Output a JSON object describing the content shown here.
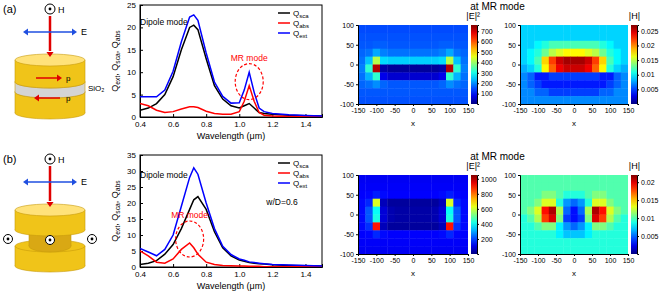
{
  "panels": [
    {
      "label": "(a)",
      "schematic": {
        "magnetic": "H",
        "electric": "E",
        "spacer": "SiO₂",
        "dipoles": [
          "p",
          "p"
        ]
      },
      "maps_title": "at MR mode"
    },
    {
      "label": "(b)",
      "schematic": {
        "magnetic": "H",
        "electric": "E"
      },
      "maps_title": "at MR mode"
    }
  ],
  "chart_data": [
    {
      "type": "line",
      "x_label": "Wavelength (μm)",
      "y_label": "Qext, Qsca, Qabs",
      "x": [
        0.4,
        0.45,
        0.5,
        0.55,
        0.6,
        0.65,
        0.7,
        0.725,
        0.75,
        0.8,
        0.85,
        0.9,
        0.95,
        1.0,
        1.03,
        1.06,
        1.09,
        1.12,
        1.15,
        1.2,
        1.3,
        1.4,
        1.5
      ],
      "series": [
        {
          "name": "Qsca",
          "color": "#000000",
          "values": [
            1.5,
            2,
            3,
            5,
            9,
            15,
            20,
            20.5,
            19.5,
            13,
            7,
            4,
            2.5,
            2,
            2.5,
            3,
            2,
            1,
            0.8,
            0.6,
            0.4,
            0.3,
            0.2
          ]
        },
        {
          "name": "Qabs",
          "color": "#ff0000",
          "values": [
            3,
            2.5,
            1.5,
            1,
            1.2,
            1.8,
            2.3,
            2.3,
            2.1,
            1.3,
            0.8,
            0.6,
            0.6,
            1.2,
            3.5,
            7,
            3.5,
            1,
            0.4,
            0.2,
            0.1,
            0.05,
            0.05
          ]
        },
        {
          "name": "Qext",
          "color": "#0000ff",
          "values": [
            4.5,
            4.5,
            4.5,
            6,
            10.2,
            16.8,
            22.3,
            22.8,
            21.6,
            14.3,
            7.8,
            4.6,
            3.1,
            3.2,
            6,
            10,
            5.5,
            2,
            1.2,
            0.8,
            0.5,
            0.35,
            0.25
          ]
        }
      ],
      "xlim": [
        0.4,
        1.5
      ],
      "xticks": [
        0.4,
        0.6,
        0.8,
        {
          "value": 1,
          "label": "1.0"
        },
        1.2,
        1.4
      ],
      "ylim": [
        0,
        25
      ],
      "yticks": [
        0,
        5,
        10,
        15,
        20,
        25
      ],
      "legend": "upper right",
      "annotations": [
        "Dipole mode",
        "MR mode"
      ]
    },
    {
      "type": "heatmap",
      "title": "|E|²",
      "x_label": "x",
      "x": [
        -140,
        -120,
        -100,
        -80,
        -60,
        -40,
        -20,
        0,
        20,
        40,
        60,
        80,
        100,
        120,
        140
      ],
      "y": [
        90,
        70,
        50,
        30,
        10,
        -10,
        -30,
        -50,
        -70,
        -90
      ],
      "values": [
        [
          150,
          150,
          150,
          150,
          150,
          150,
          150,
          150,
          150,
          150,
          150,
          150,
          150,
          150,
          150
        ],
        [
          155,
          155,
          155,
          155,
          155,
          155,
          155,
          155,
          155,
          155,
          155,
          155,
          155,
          155,
          155
        ],
        [
          160,
          160,
          165,
          165,
          160,
          160,
          160,
          160,
          160,
          160,
          160,
          165,
          165,
          160,
          160
        ],
        [
          170,
          180,
          220,
          190,
          180,
          180,
          180,
          180,
          180,
          180,
          180,
          190,
          220,
          180,
          170
        ],
        [
          180,
          240,
          420,
          260,
          250,
          250,
          250,
          250,
          250,
          250,
          250,
          260,
          420,
          240,
          180
        ],
        [
          190,
          320,
          720,
          30,
          20,
          20,
          20,
          20,
          20,
          20,
          20,
          30,
          720,
          320,
          190
        ],
        [
          180,
          230,
          320,
          80,
          60,
          60,
          60,
          60,
          60,
          60,
          60,
          80,
          320,
          230,
          180
        ],
        [
          170,
          180,
          200,
          170,
          160,
          160,
          160,
          160,
          160,
          160,
          160,
          170,
          200,
          180,
          170
        ],
        [
          160,
          160,
          160,
          160,
          160,
          160,
          160,
          160,
          160,
          160,
          160,
          160,
          160,
          160,
          160
        ],
        [
          155,
          155,
          155,
          155,
          155,
          155,
          155,
          155,
          155,
          155,
          155,
          155,
          155,
          155,
          155
        ]
      ],
      "xlim": [
        -150,
        150
      ],
      "xticks": [
        -150,
        -100,
        -50,
        0,
        50,
        100,
        150
      ],
      "ylim": [
        -100,
        100
      ],
      "yticks": [
        -100,
        -50,
        0,
        50,
        100
      ],
      "colorbar": {
        "range": [
          0,
          760
        ],
        "ticks": [
          100,
          200,
          300,
          400,
          500,
          600,
          700
        ]
      }
    },
    {
      "type": "heatmap",
      "title": "|H|",
      "x_label": "x",
      "x": [
        -140,
        -120,
        -100,
        -80,
        -60,
        -40,
        -20,
        0,
        20,
        40,
        60,
        80,
        100,
        120,
        140
      ],
      "y": [
        90,
        70,
        50,
        30,
        10,
        -10,
        -30,
        -50,
        -70,
        -90
      ],
      "values": [
        [
          0.009,
          0.009,
          0.009,
          0.009,
          0.009,
          0.009,
          0.009,
          0.009,
          0.009,
          0.009,
          0.009,
          0.009,
          0.009,
          0.009,
          0.009
        ],
        [
          0.009,
          0.009,
          0.009,
          0.009,
          0.009,
          0.009,
          0.009,
          0.009,
          0.009,
          0.009,
          0.009,
          0.009,
          0.009,
          0.009,
          0.009
        ],
        [
          0.009,
          0.009,
          0.01,
          0.011,
          0.012,
          0.012,
          0.012,
          0.012,
          0.012,
          0.012,
          0.012,
          0.011,
          0.01,
          0.009,
          0.009
        ],
        [
          0.009,
          0.01,
          0.011,
          0.013,
          0.015,
          0.016,
          0.017,
          0.017,
          0.017,
          0.016,
          0.015,
          0.013,
          0.011,
          0.01,
          0.009
        ],
        [
          0.009,
          0.01,
          0.012,
          0.018,
          0.022,
          0.025,
          0.026,
          0.026,
          0.026,
          0.025,
          0.022,
          0.018,
          0.012,
          0.01,
          0.009
        ],
        [
          0.008,
          0.009,
          0.011,
          0.017,
          0.021,
          0.024,
          0.025,
          0.025,
          0.025,
          0.024,
          0.021,
          0.017,
          0.011,
          0.009,
          0.008
        ],
        [
          0.007,
          0.006,
          0.004,
          0.004,
          0.005,
          0.005,
          0.005,
          0.005,
          0.005,
          0.005,
          0.005,
          0.004,
          0.004,
          0.006,
          0.007
        ],
        [
          0.007,
          0.006,
          0.005,
          0.004,
          0.004,
          0.004,
          0.004,
          0.004,
          0.004,
          0.004,
          0.004,
          0.004,
          0.005,
          0.006,
          0.007
        ],
        [
          0.007,
          0.007,
          0.006,
          0.006,
          0.005,
          0.005,
          0.005,
          0.005,
          0.005,
          0.005,
          0.005,
          0.006,
          0.006,
          0.007,
          0.007
        ],
        [
          0.007,
          0.007,
          0.007,
          0.007,
          0.007,
          0.007,
          0.007,
          0.007,
          0.007,
          0.007,
          0.007,
          0.007,
          0.007,
          0.007,
          0.007
        ]
      ],
      "xlim": [
        -150,
        150
      ],
      "xticks": [
        -150,
        -100,
        -50,
        0,
        50,
        100,
        150
      ],
      "ylim": [
        -100,
        100
      ],
      "yticks": [
        -100,
        -50,
        0,
        50,
        100
      ],
      "colorbar": {
        "range": [
          0,
          0.027
        ],
        "ticks": [
          0.005,
          0.01,
          0.015,
          0.02,
          0.025
        ]
      }
    },
    {
      "type": "line",
      "x_label": "Wavelength (μm)",
      "y_label": "Qext, Qsca, Qabs",
      "x": [
        0.4,
        0.45,
        0.5,
        0.55,
        0.6,
        0.65,
        0.7,
        0.725,
        0.75,
        0.8,
        0.85,
        0.9,
        0.95,
        1.0,
        1.03,
        1.06,
        1.09,
        1.12,
        1.15,
        1.2,
        1.3,
        1.4,
        1.5
      ],
      "series": [
        {
          "name": "Qsca",
          "color": "#000000",
          "values": [
            0.8,
            1.2,
            2,
            4,
            7,
            12,
            18,
            21,
            22,
            18,
            11,
            6,
            3.5,
            2.2,
            1.8,
            1.4,
            1.2,
            1,
            0.9,
            0.7,
            0.5,
            0.4,
            0.3
          ]
        },
        {
          "name": "Qabs",
          "color": "#ff0000",
          "values": [
            5,
            3.5,
            1.5,
            1.2,
            2.5,
            5.5,
            7.5,
            6,
            4,
            1.5,
            0.8,
            0.5,
            0.4,
            0.3,
            0.3,
            0.2,
            0.2,
            0.2,
            0.1,
            0.1,
            0.1,
            0.05,
            0.05
          ]
        },
        {
          "name": "Qext",
          "color": "#0000ff",
          "values": [
            5.8,
            4.7,
            3.5,
            5.5,
            10,
            19,
            28,
            31,
            29,
            20,
            12,
            6.5,
            3.9,
            2.5,
            2.1,
            1.6,
            1.4,
            1.2,
            1,
            0.8,
            0.6,
            0.45,
            0.35
          ]
        }
      ],
      "xlim": [
        0.4,
        1.5
      ],
      "xticks": [
        0.4,
        0.6,
        0.8,
        {
          "value": 1,
          "label": "1.0"
        },
        1.2,
        1.4
      ],
      "ylim": [
        0,
        35
      ],
      "yticks": [
        0,
        5,
        10,
        15,
        20,
        25,
        30,
        35
      ],
      "legend": "upper right",
      "annotations": [
        "Dipole mode",
        "MR mode",
        "w/D=0.6"
      ]
    },
    {
      "type": "heatmap",
      "title": "|E|²",
      "x_label": "x",
      "x": [
        -140,
        -120,
        -100,
        -80,
        -60,
        -40,
        -20,
        0,
        20,
        40,
        60,
        80,
        100,
        120,
        140
      ],
      "y": [
        90,
        70,
        50,
        30,
        10,
        -10,
        -30,
        -50,
        -70,
        -90
      ],
      "values": [
        [
          120,
          120,
          120,
          120,
          120,
          120,
          120,
          120,
          120,
          120,
          120,
          120,
          120,
          120,
          120
        ],
        [
          125,
          125,
          125,
          125,
          125,
          125,
          125,
          125,
          125,
          125,
          125,
          125,
          125,
          125,
          125
        ],
        [
          130,
          135,
          160,
          140,
          130,
          130,
          130,
          130,
          130,
          130,
          130,
          140,
          160,
          135,
          130
        ],
        [
          140,
          170,
          620,
          60,
          30,
          30,
          30,
          30,
          30,
          30,
          30,
          60,
          620,
          170,
          140
        ],
        [
          140,
          220,
          400,
          90,
          50,
          40,
          40,
          40,
          40,
          40,
          50,
          90,
          400,
          220,
          140
        ],
        [
          140,
          220,
          420,
          90,
          50,
          40,
          40,
          40,
          40,
          40,
          50,
          90,
          420,
          220,
          140
        ],
        [
          140,
          180,
          900,
          60,
          30,
          30,
          30,
          30,
          30,
          30,
          30,
          60,
          900,
          180,
          140
        ],
        [
          130,
          135,
          170,
          140,
          130,
          130,
          130,
          130,
          130,
          130,
          130,
          140,
          170,
          135,
          130
        ],
        [
          125,
          125,
          125,
          125,
          125,
          125,
          125,
          125,
          125,
          125,
          125,
          125,
          125,
          125,
          125
        ],
        [
          120,
          120,
          120,
          120,
          120,
          120,
          120,
          120,
          120,
          120,
          120,
          120,
          120,
          120,
          120
        ]
      ],
      "xlim": [
        -150,
        150
      ],
      "xticks": [
        -150,
        -100,
        -50,
        0,
        50,
        100,
        150
      ],
      "ylim": [
        -100,
        100
      ],
      "yticks": [
        -100,
        -50,
        0,
        50,
        100
      ],
      "colorbar": {
        "range": [
          0,
          1050
        ],
        "ticks": [
          200,
          400,
          600,
          800,
          1000
        ]
      }
    },
    {
      "type": "heatmap",
      "title": "|H|",
      "x_label": "x",
      "x": [
        -140,
        -120,
        -100,
        -80,
        -60,
        -40,
        -20,
        0,
        20,
        40,
        60,
        80,
        100,
        120,
        140
      ],
      "y": [
        90,
        70,
        50,
        30,
        10,
        -10,
        -30,
        -50,
        -70,
        -90
      ],
      "values": [
        [
          0.01,
          0.01,
          0.01,
          0.01,
          0.01,
          0.01,
          0.01,
          0.01,
          0.01,
          0.01,
          0.01,
          0.01,
          0.01,
          0.01,
          0.01
        ],
        [
          0.01,
          0.01,
          0.01,
          0.01,
          0.01,
          0.01,
          0.01,
          0.01,
          0.01,
          0.01,
          0.01,
          0.01,
          0.01,
          0.01,
          0.01
        ],
        [
          0.01,
          0.01,
          0.01,
          0.011,
          0.011,
          0.01,
          0.009,
          0.009,
          0.009,
          0.01,
          0.011,
          0.011,
          0.01,
          0.01,
          0.01
        ],
        [
          0.01,
          0.01,
          0.011,
          0.013,
          0.013,
          0.009,
          0.006,
          0.005,
          0.006,
          0.009,
          0.013,
          0.013,
          0.011,
          0.01,
          0.01
        ],
        [
          0.01,
          0.011,
          0.013,
          0.019,
          0.021,
          0.012,
          0.005,
          0.003,
          0.005,
          0.012,
          0.021,
          0.019,
          0.013,
          0.011,
          0.01
        ],
        [
          0.009,
          0.01,
          0.012,
          0.018,
          0.02,
          0.011,
          0.004,
          0.003,
          0.004,
          0.011,
          0.02,
          0.018,
          0.012,
          0.01,
          0.009
        ],
        [
          0.009,
          0.009,
          0.01,
          0.011,
          0.011,
          0.008,
          0.006,
          0.005,
          0.006,
          0.008,
          0.011,
          0.011,
          0.01,
          0.009,
          0.009
        ],
        [
          0.009,
          0.009,
          0.009,
          0.009,
          0.009,
          0.008,
          0.007,
          0.007,
          0.007,
          0.008,
          0.009,
          0.009,
          0.009,
          0.009,
          0.009
        ],
        [
          0.009,
          0.009,
          0.009,
          0.009,
          0.009,
          0.009,
          0.009,
          0.009,
          0.009,
          0.009,
          0.009,
          0.009,
          0.009,
          0.009,
          0.009
        ],
        [
          0.009,
          0.009,
          0.009,
          0.009,
          0.009,
          0.009,
          0.009,
          0.009,
          0.009,
          0.009,
          0.009,
          0.009,
          0.009,
          0.009,
          0.009
        ]
      ],
      "xlim": [
        -150,
        150
      ],
      "xticks": [
        -150,
        -100,
        -50,
        0,
        50,
        100,
        150
      ],
      "ylim": [
        -100,
        100
      ],
      "yticks": [
        -100,
        -50,
        0,
        50,
        100
      ],
      "colorbar": {
        "range": [
          0,
          0.022
        ],
        "ticks": [
          0.005,
          0.01,
          0.015,
          0.02
        ]
      }
    }
  ]
}
